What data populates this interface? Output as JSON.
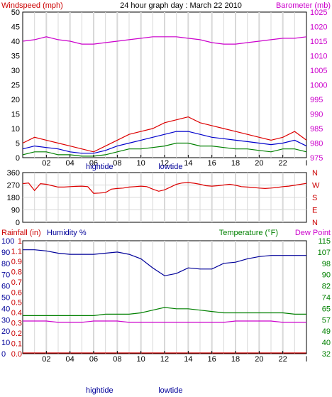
{
  "chart_data": [
    {
      "type": "line",
      "title": "24 hour graph day : March 22 2010",
      "left_axis_label": "Windspeed (mph)",
      "right_axis_label": "Barometer (mb)",
      "left_ticks": [
        "50",
        "45",
        "40",
        "35",
        "30",
        "25",
        "20",
        "15",
        "10",
        "5",
        "0"
      ],
      "right_ticks": [
        "1025",
        "1020",
        "1015",
        "1010",
        "1005",
        "1000",
        "995",
        "990",
        "985",
        "980",
        "975"
      ],
      "ylim_left": [
        0,
        50
      ],
      "ylim_right": [
        975,
        1025
      ],
      "x_ticks": [
        "02",
        "04",
        "06",
        "08",
        "10",
        "12",
        "14",
        "16",
        "18",
        "20",
        "22",
        "I"
      ],
      "tide_labels": [
        {
          "text": "hightide",
          "hour": 6.5
        },
        {
          "text": "lowtide",
          "hour": 12.5
        }
      ],
      "grid": true,
      "colors": {
        "left_axis": "#cc0000",
        "right_axis": "#cc00cc"
      },
      "series": [
        {
          "axis": "right",
          "color": "#cc00cc",
          "x": [
            0,
            1,
            2,
            3,
            4,
            5,
            6,
            7,
            8,
            9,
            10,
            11,
            12,
            13,
            14,
            15,
            16,
            17,
            18,
            19,
            20,
            21,
            22,
            23,
            24
          ],
          "values": [
            1015,
            1015.5,
            1016.5,
            1015.5,
            1015,
            1014,
            1014,
            1014.5,
            1015,
            1015.5,
            1016,
            1016.5,
            1016.5,
            1016.5,
            1016,
            1015.5,
            1014.5,
            1014,
            1014,
            1014.5,
            1015,
            1015.5,
            1016,
            1016,
            1016.5
          ]
        },
        {
          "axis": "left",
          "color": "#dd0000",
          "x": [
            0,
            1,
            2,
            3,
            4,
            5,
            6,
            7,
            8,
            9,
            10,
            11,
            12,
            13,
            14,
            15,
            16,
            17,
            18,
            19,
            20,
            21,
            22,
            23,
            24
          ],
          "values": [
            5,
            7,
            6,
            5,
            4,
            3,
            2,
            4,
            6,
            8,
            9,
            10,
            12,
            13,
            14,
            12,
            11,
            10,
            9,
            8,
            7,
            6,
            7,
            9,
            6
          ]
        },
        {
          "axis": "left",
          "color": "#0000cc",
          "x": [
            0,
            1,
            2,
            3,
            4,
            5,
            6,
            7,
            8,
            9,
            10,
            11,
            12,
            13,
            14,
            15,
            16,
            17,
            18,
            19,
            20,
            21,
            22,
            23,
            24
          ],
          "values": [
            3,
            4,
            3.5,
            3,
            2,
            1.5,
            1.5,
            2.5,
            4,
            5,
            6,
            7,
            8,
            9,
            9,
            8,
            7,
            6.5,
            6,
            5.5,
            5,
            4.5,
            5,
            6,
            4
          ]
        },
        {
          "axis": "left",
          "color": "#008000",
          "x": [
            0,
            1,
            2,
            3,
            4,
            5,
            6,
            7,
            8,
            9,
            10,
            11,
            12,
            13,
            14,
            15,
            16,
            17,
            18,
            19,
            20,
            21,
            22,
            23,
            24
          ],
          "values": [
            1,
            2,
            2,
            1,
            1,
            0.5,
            0.5,
            1,
            2,
            3,
            3,
            3.5,
            4,
            5,
            5,
            4,
            4,
            3.5,
            3,
            3,
            2.5,
            2,
            3,
            3,
            2
          ]
        }
      ]
    },
    {
      "type": "line",
      "left_ticks": [
        "360",
        "270",
        "180",
        "90",
        "0"
      ],
      "right_ticks": [
        "N",
        "W",
        "S",
        "E",
        "N"
      ],
      "ylim": [
        0,
        360
      ],
      "x_ticks": [],
      "grid": true,
      "series": [
        {
          "color": "#dd0000",
          "x": [
            0,
            0.5,
            1,
            1.5,
            2,
            2.5,
            3,
            3.5,
            4,
            4.5,
            5,
            5.5,
            6,
            6.5,
            7,
            7.5,
            8,
            8.5,
            9,
            9.5,
            10,
            10.5,
            11,
            11.5,
            12,
            12.5,
            13,
            13.5,
            14,
            14.5,
            15,
            15.5,
            16,
            16.5,
            17,
            17.5,
            18,
            18.5,
            19,
            19.5,
            20,
            20.5,
            21,
            21.5,
            22,
            22.5,
            23,
            23.5,
            24
          ],
          "values": [
            280,
            285,
            230,
            280,
            275,
            265,
            255,
            255,
            258,
            260,
            262,
            258,
            210,
            212,
            215,
            240,
            245,
            248,
            255,
            258,
            262,
            258,
            240,
            225,
            235,
            255,
            275,
            285,
            288,
            283,
            275,
            265,
            262,
            265,
            270,
            275,
            268,
            258,
            255,
            252,
            248,
            245,
            248,
            252,
            258,
            262,
            268,
            275,
            282
          ]
        }
      ]
    },
    {
      "type": "line",
      "left_axis_label": "Rainfall (in)",
      "humidity_label": "Humidity %",
      "right_axis_label": "Temperature (°F)",
      "right_axis_label2": "Dew Point",
      "rain_ticks": [
        "1",
        "1.1",
        "0.9",
        "0.8",
        "0.7",
        "0.6",
        "0.5",
        "0.4",
        "0.3",
        "0.2",
        "0.1",
        "0.0"
      ],
      "humidity_ticks": [
        "100",
        "90",
        "80",
        "70",
        "60",
        "50",
        "40",
        "30",
        "20",
        "10",
        "0"
      ],
      "temp_ticks": [
        "115",
        "107",
        "98",
        "90",
        "82",
        "74",
        "65",
        "57",
        "49",
        "40",
        "32"
      ],
      "ylim_humidity": [
        0,
        100
      ],
      "ylim_temp": [
        32,
        115
      ],
      "x_ticks": [
        "02",
        "04",
        "06",
        "08",
        "10",
        "12",
        "14",
        "16",
        "18",
        "20",
        "22",
        "I"
      ],
      "tide_labels": [
        {
          "text": "hightide",
          "hour": 6.5
        },
        {
          "text": "lowtide",
          "hour": 12.5
        }
      ],
      "grid": true,
      "colors": {
        "rain": "#cc0000",
        "humidity": "#000099",
        "temp": "#008000"
      },
      "series": [
        {
          "axis": "humidity",
          "color": "#000099",
          "x": [
            0,
            1,
            2,
            3,
            4,
            5,
            6,
            7,
            8,
            9,
            10,
            11,
            12,
            13,
            14,
            15,
            16,
            17,
            18,
            19,
            20,
            21,
            22,
            23,
            24
          ],
          "values": [
            92,
            92,
            91,
            89,
            88,
            88,
            88,
            89,
            90,
            88,
            84,
            76,
            69,
            71,
            76,
            75,
            75,
            80,
            81,
            84,
            86,
            87,
            87,
            87,
            87
          ]
        },
        {
          "axis": "temp",
          "color": "#008000",
          "x": [
            0,
            1,
            2,
            3,
            4,
            5,
            6,
            7,
            8,
            9,
            10,
            11,
            12,
            13,
            14,
            15,
            16,
            17,
            18,
            19,
            20,
            21,
            22,
            23,
            24
          ],
          "values": [
            60,
            60,
            60,
            60,
            60,
            60,
            60,
            61,
            61,
            61,
            62,
            64,
            66,
            65,
            65,
            64,
            63,
            62,
            62,
            62,
            62,
            62,
            62,
            61,
            61
          ]
        },
        {
          "axis": "temp",
          "color": "#cc00cc",
          "x": [
            0,
            1,
            2,
            3,
            4,
            5,
            6,
            7,
            8,
            9,
            10,
            11,
            12,
            13,
            14,
            15,
            16,
            17,
            18,
            19,
            20,
            21,
            22,
            23,
            24
          ],
          "values": [
            56,
            56,
            56,
            55,
            55,
            55,
            56,
            56,
            56,
            55,
            55,
            55,
            55,
            55,
            55,
            55,
            55,
            55,
            56,
            56,
            56,
            56,
            55,
            55,
            55
          ]
        },
        {
          "axis": "rain",
          "color": "#cc0000",
          "x": [
            0,
            24
          ],
          "values": [
            0,
            0
          ]
        }
      ]
    }
  ]
}
